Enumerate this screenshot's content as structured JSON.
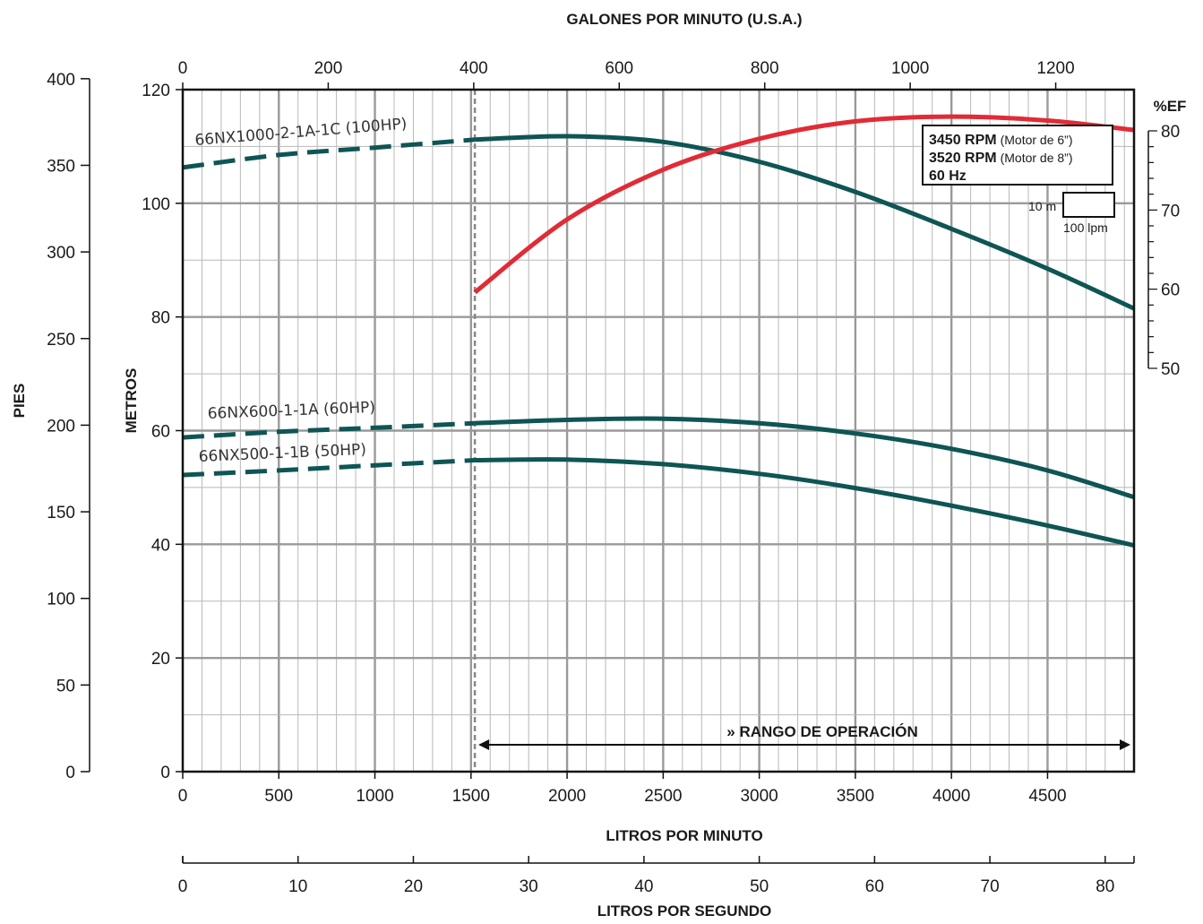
{
  "chart_data": {
    "type": "line",
    "title": "",
    "x_primary": {
      "label": "LITROS POR MINUTO",
      "range": [
        0,
        4950
      ],
      "ticks": [
        0,
        500,
        1000,
        1500,
        2000,
        2500,
        3000,
        3500,
        4000,
        4500
      ],
      "tick_labels": [
        "0",
        "500",
        "1000",
        "1500",
        "2000",
        "2500",
        "3000",
        "3500",
        "4000",
        "4500"
      ]
    },
    "x_top": {
      "label": "GALONES POR MINUTO (U.S.A.)",
      "ticks": [
        0,
        200,
        400,
        600,
        800,
        1000,
        1200
      ],
      "tick_labels": [
        "0",
        "200",
        "400",
        "600",
        "800",
        "1000",
        "1200"
      ]
    },
    "x_bottom": {
      "label": "LITROS POR SEGUNDO",
      "ticks": [
        0,
        10,
        20,
        30,
        40,
        50,
        60,
        70,
        80
      ],
      "tick_labels": [
        "0",
        "10",
        "20",
        "30",
        "40",
        "50",
        "60",
        "70",
        "80"
      ]
    },
    "y_primary": {
      "label": "METROS",
      "range": [
        0,
        120
      ],
      "ticks": [
        0,
        20,
        40,
        60,
        80,
        100,
        120
      ],
      "tick_labels": [
        "0",
        "20",
        "40",
        "60",
        "80",
        "100",
        "120"
      ]
    },
    "y_feet": {
      "label": "PIES",
      "ticks": [
        0,
        50,
        100,
        150,
        200,
        250,
        300,
        350,
        400
      ],
      "tick_labels": [
        "0",
        "50",
        "100",
        "150",
        "200",
        "250",
        "300",
        "350",
        "400"
      ]
    },
    "y_eff": {
      "label": "%EF",
      "ticks": [
        50,
        60,
        70,
        80
      ],
      "tick_labels": [
        "50",
        "60",
        "70",
        "80"
      ]
    },
    "grid": true,
    "operating_limit_x": 1520,
    "operating_range": {
      "label": "» RANGO DE OPERACIÓN",
      "x": [
        1520,
        4950
      ]
    },
    "info_box": {
      "line1_strong": "3450 RPM",
      "line1_small": "(Motor de 6”)",
      "line2_strong": "3520 RPM",
      "line2_small": "(Motor de 8”)",
      "line3_strong": "60 Hz",
      "scale_h_label": "10 m",
      "scale_w_label": "100 lpm"
    },
    "series": [
      {
        "name": "66NX1000-2-1A-1C (100HP)",
        "color": "#0e5554",
        "x": [
          0,
          500,
          1000,
          1520,
          2000,
          2500,
          3000,
          3500,
          4000,
          4500,
          4950
        ],
        "y": [
          106.3,
          108.5,
          109.8,
          111.2,
          111.8,
          110.8,
          107.3,
          102.0,
          95.5,
          88.5,
          81.5
        ]
      },
      {
        "name": "66NX600-1-1A (60HP)",
        "color": "#0e5554",
        "x": [
          0,
          500,
          1000,
          1520,
          2000,
          2500,
          3000,
          3500,
          4000,
          4500,
          4950
        ],
        "y": [
          58.8,
          59.8,
          60.5,
          61.3,
          61.9,
          62.1,
          61.3,
          59.5,
          56.8,
          53.0,
          48.3
        ]
      },
      {
        "name": "66NX500-1-1B (50HP)",
        "color": "#0e5554",
        "x": [
          0,
          500,
          1000,
          1520,
          2000,
          2500,
          3000,
          3500,
          4000,
          4500,
          4950
        ],
        "y": [
          52.2,
          53.0,
          53.9,
          54.8,
          54.9,
          54.1,
          52.4,
          49.9,
          46.8,
          43.3,
          39.8
        ]
      },
      {
        "name": "%EF",
        "color": "#e12b36",
        "axis": "eff",
        "x": [
          1520,
          2000,
          2500,
          3000,
          3500,
          4000,
          4500,
          4950
        ],
        "y": [
          59.6,
          68.8,
          75.1,
          79.0,
          81.2,
          81.8,
          81.3,
          80.1
        ]
      }
    ]
  }
}
